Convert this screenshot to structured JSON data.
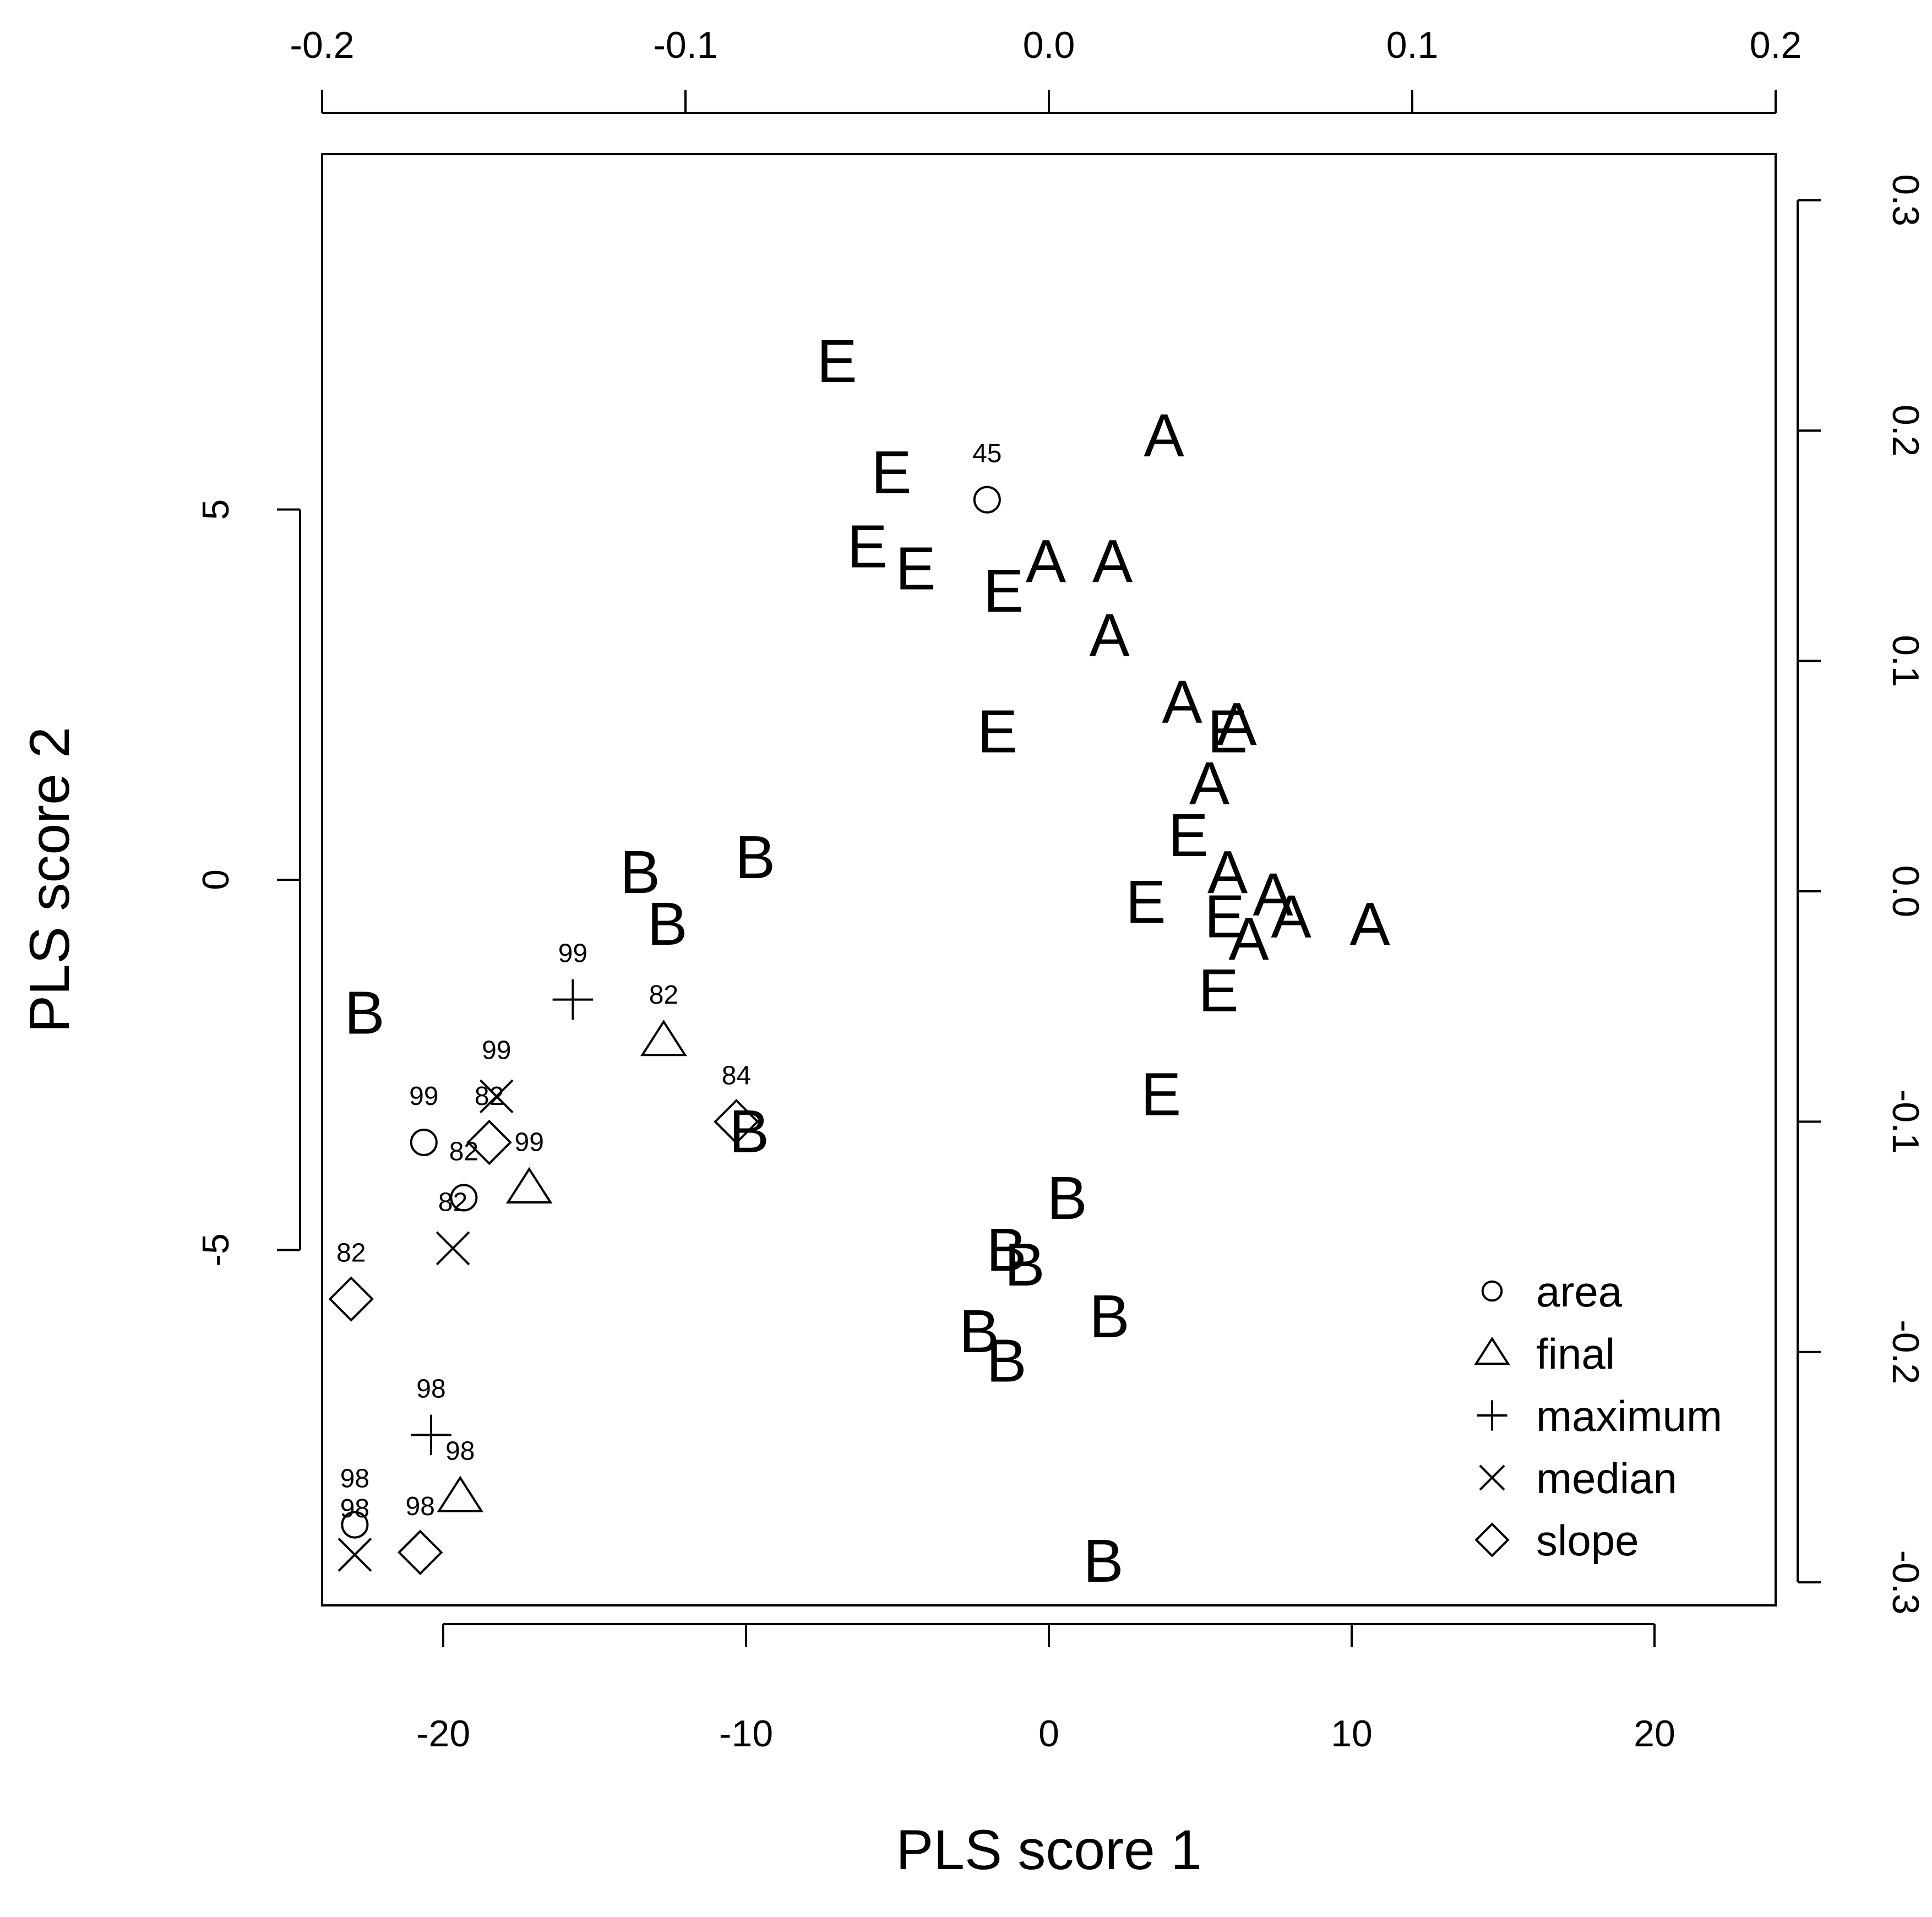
{
  "chart_data": {
    "type": "scatter",
    "title": "",
    "xlabel": "PLS score 1",
    "ylabel": "PLS score 2",
    "xlim": [
      -24,
      24
    ],
    "ylim": [
      -9.8,
      9.8
    ],
    "x_ticks": [
      -20,
      -10,
      0,
      10,
      20
    ],
    "y_ticks": [
      -5,
      0,
      5
    ],
    "top_axis": {
      "lim": [
        -0.2,
        0.2
      ],
      "ticks": [
        -0.2,
        -0.1,
        0.0,
        0.1,
        0.2
      ],
      "tick_labels": [
        "-0.2",
        "-0.1",
        "0.0",
        "0.1",
        "0.2"
      ]
    },
    "right_axis": {
      "lim": [
        -0.31,
        0.32
      ],
      "ticks": [
        -0.3,
        -0.2,
        -0.1,
        0.0,
        0.1,
        0.2,
        0.3
      ],
      "tick_labels": [
        "-0.3",
        "-0.2",
        "-0.1",
        "0.0",
        "0.1",
        "0.2",
        "0.3"
      ]
    },
    "grid": false,
    "legend": {
      "position": "bottom-right",
      "items": [
        {
          "symbol": "circle",
          "label": "area"
        },
        {
          "symbol": "triangle",
          "label": "final"
        },
        {
          "symbol": "plus",
          "label": "maximum"
        },
        {
          "symbol": "cross",
          "label": "median"
        },
        {
          "symbol": "diamond",
          "label": "slope"
        }
      ]
    },
    "scores": [
      {
        "label": "E",
        "x": -7.0,
        "y": 7.0
      },
      {
        "label": "E",
        "x": -5.2,
        "y": 5.5
      },
      {
        "label": "E",
        "x": -6.0,
        "y": 4.5
      },
      {
        "label": "E",
        "x": -4.4,
        "y": 4.2
      },
      {
        "label": "E",
        "x": -1.5,
        "y": 3.9
      },
      {
        "label": "E",
        "x": -1.7,
        "y": 2.0
      },
      {
        "label": "E",
        "x": 5.9,
        "y": 2.0
      },
      {
        "label": "E",
        "x": 4.6,
        "y": 0.6
      },
      {
        "label": "E",
        "x": 3.2,
        "y": -0.3
      },
      {
        "label": "E",
        "x": 5.8,
        "y": -0.5
      },
      {
        "label": "E",
        "x": 5.6,
        "y": -1.5
      },
      {
        "label": "E",
        "x": 3.7,
        "y": -2.9
      },
      {
        "label": "A",
        "x": 3.8,
        "y": 6.0
      },
      {
        "label": "A",
        "x": -0.1,
        "y": 4.3
      },
      {
        "label": "A",
        "x": 2.1,
        "y": 4.3
      },
      {
        "label": "A",
        "x": 2.0,
        "y": 3.3
      },
      {
        "label": "A",
        "x": 4.4,
        "y": 2.4
      },
      {
        "label": "A",
        "x": 6.2,
        "y": 2.1
      },
      {
        "label": "A",
        "x": 5.3,
        "y": 1.3
      },
      {
        "label": "A",
        "x": 5.9,
        "y": 0.1
      },
      {
        "label": "A",
        "x": 7.4,
        "y": -0.2
      },
      {
        "label": "A",
        "x": 8.0,
        "y": -0.5
      },
      {
        "label": "A",
        "x": 6.6,
        "y": -0.8
      },
      {
        "label": "A",
        "x": 10.6,
        "y": -0.6
      },
      {
        "label": "B",
        "x": -13.5,
        "y": 0.1
      },
      {
        "label": "B",
        "x": -9.7,
        "y": 0.3
      },
      {
        "label": "B",
        "x": -12.6,
        "y": -0.6
      },
      {
        "label": "B",
        "x": -22.6,
        "y": -1.8
      },
      {
        "label": "B",
        "x": -9.9,
        "y": -3.4
      },
      {
        "label": "B",
        "x": 0.6,
        "y": -4.3
      },
      {
        "label": "B",
        "x": -1.4,
        "y": -5.0
      },
      {
        "label": "B",
        "x": -0.8,
        "y": -5.2
      },
      {
        "label": "B",
        "x": -2.3,
        "y": -6.1
      },
      {
        "label": "B",
        "x": -1.4,
        "y": -6.5
      },
      {
        "label": "B",
        "x": 2.0,
        "y": -5.9
      },
      {
        "label": "B",
        "x": 1.8,
        "y": -9.2
      }
    ],
    "loadings": [
      {
        "variable": "area",
        "label": "45",
        "x": -0.017,
        "y": 0.17
      },
      {
        "variable": "area",
        "label": "99",
        "x": -0.172,
        "y": -0.109
      },
      {
        "variable": "area",
        "label": "82",
        "x": -0.161,
        "y": -0.133
      },
      {
        "variable": "area",
        "label": "98",
        "x": -0.191,
        "y": -0.275
      },
      {
        "variable": "final",
        "label": "82",
        "x": -0.106,
        "y": -0.065
      },
      {
        "variable": "final",
        "label": "99",
        "x": -0.143,
        "y": -0.129
      },
      {
        "variable": "final",
        "label": "98",
        "x": -0.162,
        "y": -0.263
      },
      {
        "variable": "maximum",
        "label": "99",
        "x": -0.131,
        "y": -0.047
      },
      {
        "variable": "maximum",
        "label": "98",
        "x": -0.17,
        "y": -0.236
      },
      {
        "variable": "median",
        "label": "99",
        "x": -0.152,
        "y": -0.089
      },
      {
        "variable": "median",
        "label": "82",
        "x": -0.164,
        "y": -0.155
      },
      {
        "variable": "median",
        "label": "98",
        "x": -0.191,
        "y": -0.288
      },
      {
        "variable": "slope",
        "label": "84",
        "x": -0.086,
        "y": -0.1
      },
      {
        "variable": "slope",
        "label": "82",
        "x": -0.154,
        "y": -0.109
      },
      {
        "variable": "slope",
        "label": "82",
        "x": -0.192,
        "y": -0.177
      },
      {
        "variable": "slope",
        "label": "98",
        "x": -0.173,
        "y": -0.287
      }
    ]
  }
}
